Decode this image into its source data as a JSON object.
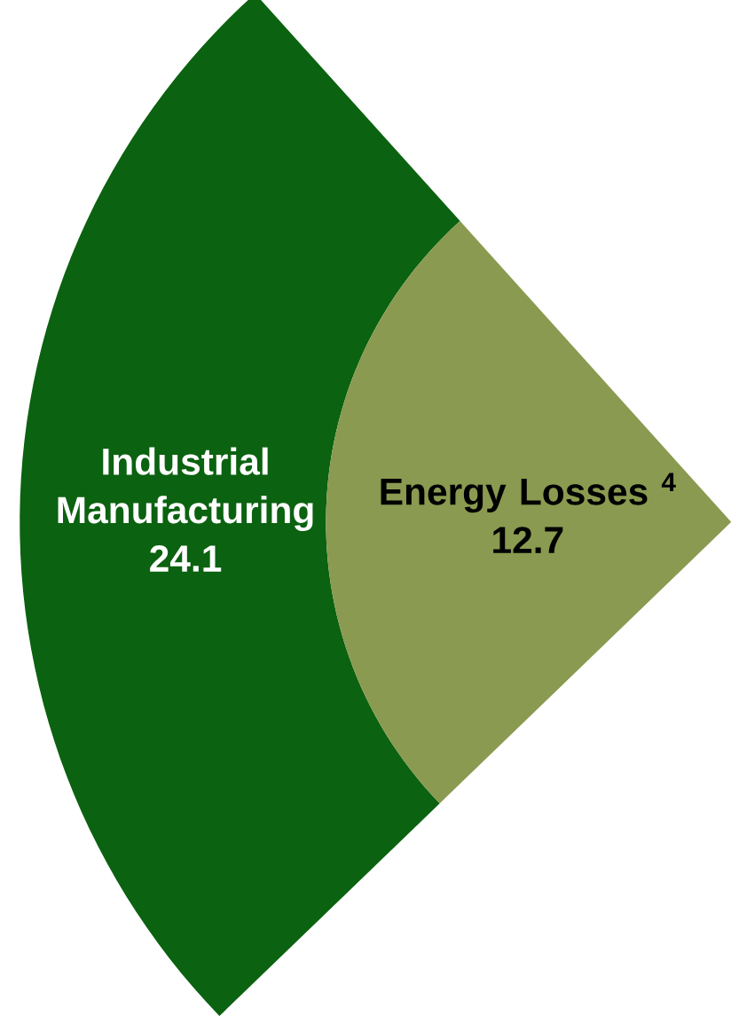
{
  "chart_data": {
    "type": "other",
    "categories": [
      "Industrial Manufacturing",
      "Energy Losses $^{4}$"
    ],
    "values": [
      24.1,
      12.7
    ],
    "colors": [
      "#0b6210",
      "#8a9a50"
    ],
    "data_labels": true
  }
}
